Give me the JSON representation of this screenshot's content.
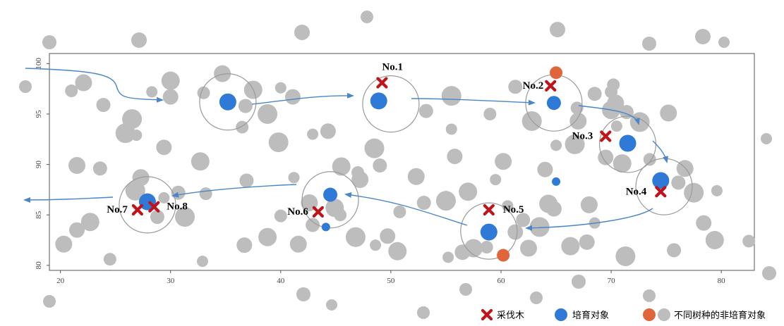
{
  "chart_data": {
    "type": "scatter",
    "title": "",
    "xlabel": "",
    "ylabel": "",
    "xlim": [
      19,
      83
    ],
    "ylim": [
      79.5,
      101
    ],
    "x_ticks": [
      20,
      30,
      40,
      50,
      60,
      70,
      80
    ],
    "y_ticks": [
      80,
      85,
      90,
      95,
      100
    ],
    "grid": false,
    "legend_position": "bottom-right",
    "colors": {
      "cut": "#c0141b",
      "target": "#2f7ad6",
      "other": "#e0653a",
      "background": "#bdbdbd",
      "arrow": "#4a86c8",
      "circle": "#9a9a9a"
    },
    "legend": [
      {
        "label": "采伐木",
        "symbol": "cross",
        "color": "#c0141b"
      },
      {
        "label": "培育对象",
        "symbol": "circle",
        "color": "#2f7ad6"
      },
      {
        "label": "不同树种的非培育对象",
        "symbol": "circle-pair",
        "colors": [
          "#e0653a",
          "#bdbdbd"
        ]
      }
    ],
    "target_trees": [
      {
        "x": 35.2,
        "y": 96.2,
        "size": "large"
      },
      {
        "x": 48.9,
        "y": 96.3,
        "size": "large"
      },
      {
        "x": 64.8,
        "y": 96.1,
        "size": "medium"
      },
      {
        "x": 71.5,
        "y": 92.1,
        "size": "large"
      },
      {
        "x": 74.5,
        "y": 88.4,
        "size": "large"
      },
      {
        "x": 58.9,
        "y": 83.3,
        "size": "large"
      },
      {
        "x": 44.5,
        "y": 87.0,
        "size": "medium"
      },
      {
        "x": 27.9,
        "y": 86.3,
        "size": "large"
      },
      {
        "x": 65.0,
        "y": 88.3,
        "size": "small"
      },
      {
        "x": 44.1,
        "y": 83.8,
        "size": "small"
      }
    ],
    "cut_trees": [
      {
        "label": "No.1",
        "x": 49.2,
        "y": 98.1
      },
      {
        "label": "No.2",
        "x": 64.5,
        "y": 97.8
      },
      {
        "label": "No.3",
        "x": 69.5,
        "y": 92.8
      },
      {
        "label": "No.4",
        "x": 74.5,
        "y": 87.3
      },
      {
        "label": "No.5",
        "x": 58.9,
        "y": 85.5
      },
      {
        "label": "No.6",
        "x": 43.4,
        "y": 85.3
      },
      {
        "label": "No.7",
        "x": 27.0,
        "y": 85.5
      },
      {
        "label": "No.8",
        "x": 28.5,
        "y": 85.8
      }
    ],
    "other_species_trees": [
      {
        "x": 65.0,
        "y": 99.1
      },
      {
        "x": 60.2,
        "y": 81.0
      }
    ],
    "neighborhood_circles": [
      {
        "x": 35.2,
        "y": 96.2
      },
      {
        "x": 50.0,
        "y": 96.0
      },
      {
        "x": 64.8,
        "y": 96.1
      },
      {
        "x": 71.5,
        "y": 92.0
      },
      {
        "x": 74.8,
        "y": 87.8
      },
      {
        "x": 58.9,
        "y": 83.4
      },
      {
        "x": 44.5,
        "y": 86.5
      },
      {
        "x": 27.9,
        "y": 86.0
      }
    ],
    "background_trees": [
      [
        21.0,
        97.3
      ],
      [
        22.1,
        98.1
      ],
      [
        23.9,
        95.9
      ],
      [
        26.5,
        94.5
      ],
      [
        28.3,
        97.2
      ],
      [
        30.0,
        96.7
      ],
      [
        30.0,
        98.3
      ],
      [
        33.0,
        97.1
      ],
      [
        34.7,
        99.0
      ],
      [
        36.8,
        95.8
      ],
      [
        38.8,
        95.0
      ],
      [
        40.0,
        97.6
      ],
      [
        41.1,
        96.7
      ],
      [
        37.5,
        97.4
      ],
      [
        36.5,
        93.7
      ],
      [
        21.5,
        89.9
      ],
      [
        23.6,
        89.6
      ],
      [
        25.9,
        93.1
      ],
      [
        26.9,
        92.9
      ],
      [
        29.4,
        91.7
      ],
      [
        32.7,
        90.3
      ],
      [
        33.2,
        87.1
      ],
      [
        27.3,
        88.7
      ],
      [
        36.9,
        88.4
      ],
      [
        39.8,
        92.2
      ],
      [
        41.2,
        88.7
      ],
      [
        44.3,
        93.3
      ],
      [
        45.5,
        89.8
      ],
      [
        47.0,
        89.2
      ],
      [
        47.2,
        88.5
      ],
      [
        49.0,
        89.9
      ],
      [
        48.5,
        91.6
      ],
      [
        42.9,
        93.0
      ],
      [
        21.5,
        83.5
      ],
      [
        22.7,
        84.3
      ],
      [
        24.5,
        80.6
      ],
      [
        20.3,
        82.1
      ],
      [
        30.7,
        87.2
      ],
      [
        31.3,
        84.8
      ],
      [
        32.9,
        80.4
      ],
      [
        36.7,
        82.0
      ],
      [
        38.8,
        82.8
      ],
      [
        40.0,
        84.9
      ],
      [
        41.6,
        82.1
      ],
      [
        42.9,
        84.0
      ],
      [
        46.8,
        82.8
      ],
      [
        48.6,
        82.0
      ],
      [
        49.7,
        82.9
      ],
      [
        50.6,
        81.4
      ],
      [
        50.8,
        85.3
      ],
      [
        52.3,
        88.8
      ],
      [
        53.0,
        86.2
      ],
      [
        55.0,
        86.4
      ],
      [
        55.2,
        80.8
      ],
      [
        56.5,
        81.3
      ],
      [
        57.5,
        81.7
      ],
      [
        58.7,
        81.8
      ],
      [
        62.5,
        81.7
      ],
      [
        53.2,
        95.3
      ],
      [
        55.5,
        96.8
      ],
      [
        55.5,
        93.5
      ],
      [
        55.8,
        90.8
      ],
      [
        57.0,
        87.3
      ],
      [
        59.0,
        95.0
      ],
      [
        60.2,
        90.3
      ],
      [
        61.3,
        97.7
      ],
      [
        62.8,
        94.3
      ],
      [
        59.5,
        88.5
      ],
      [
        64.0,
        89.5
      ],
      [
        64.3,
        86.1
      ],
      [
        66.9,
        95.6
      ],
      [
        67.0,
        94.3
      ],
      [
        68.5,
        97.0
      ],
      [
        66.7,
        92.0
      ],
      [
        65.0,
        91.9
      ],
      [
        64.8,
        85.6
      ],
      [
        70.0,
        95.4
      ],
      [
        70.2,
        97.9
      ],
      [
        70.4,
        96.1
      ],
      [
        71.4,
        95.2
      ],
      [
        72.6,
        94.2
      ],
      [
        70.5,
        93.8
      ],
      [
        69.5,
        90.7
      ],
      [
        71.0,
        90.1
      ],
      [
        73.5,
        90.5
      ],
      [
        75.2,
        95.1
      ],
      [
        76.1,
        88.2
      ],
      [
        77.5,
        87.2
      ],
      [
        79.6,
        87.4
      ],
      [
        78.4,
        84.2
      ],
      [
        79.4,
        82.5
      ],
      [
        82.5,
        82.4
      ],
      [
        76.7,
        89.6
      ],
      [
        75.7,
        81.5
      ],
      [
        71.3,
        80.9
      ],
      [
        68.5,
        84.2
      ],
      [
        67.8,
        82.3
      ],
      [
        66.3,
        81.9
      ],
      [
        70.0,
        97.2
      ],
      [
        68.0,
        86.0
      ],
      [
        62.0,
        84.5
      ],
      [
        63.5,
        83.8
      ],
      [
        60.6,
        85.9
      ],
      [
        61.3,
        83.3
      ],
      [
        44.9,
        85.7
      ],
      [
        45.4,
        85.0
      ],
      [
        42.6,
        86.2
      ],
      [
        28.8,
        84.8
      ],
      [
        26.8,
        87.4
      ],
      [
        29.4,
        86.7
      ]
    ],
    "bg_tree_large_radius": true,
    "path_order": [
      "No.1",
      "No.2",
      "No.3",
      "No.4",
      "No.5",
      "No.6",
      "No.7",
      "No.8"
    ]
  }
}
